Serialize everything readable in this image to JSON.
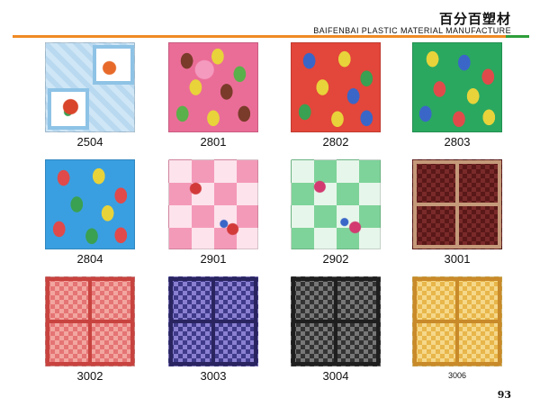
{
  "header": {
    "brand_cn": "百分百塑材",
    "brand_en": "BAIFENBAI PLASTIC MATERIAL MANUFACTURE"
  },
  "colors": {
    "accent_bar": "#f08a24",
    "accent_bar_end": "#2e9e3a"
  },
  "tiles": [
    {
      "code": "2504"
    },
    {
      "code": "2801"
    },
    {
      "code": "2802"
    },
    {
      "code": "2803"
    },
    {
      "code": "2804"
    },
    {
      "code": "2901"
    },
    {
      "code": "2902"
    },
    {
      "code": "3001"
    },
    {
      "code": "3002"
    },
    {
      "code": "3003"
    },
    {
      "code": "3004"
    },
    {
      "code": "3006"
    }
  ],
  "page_number": "93"
}
